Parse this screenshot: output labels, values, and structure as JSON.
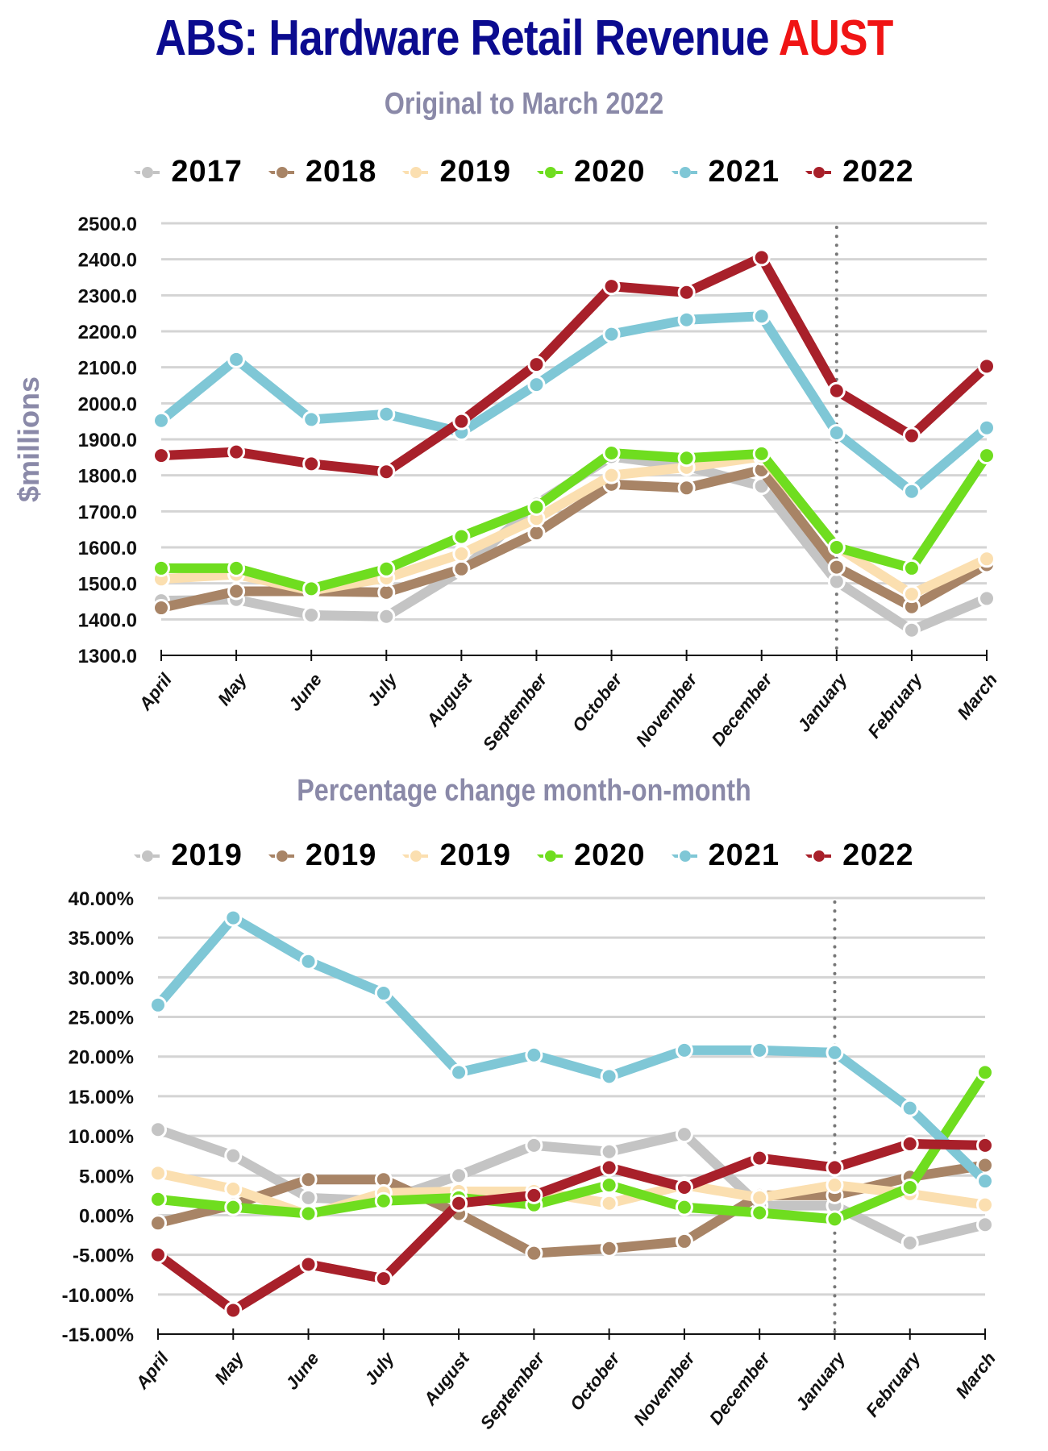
{
  "header": {
    "title_main": "ABS: Hardware Retail Revenue ",
    "title_accent": "AUST"
  },
  "colors": {
    "title": "#0b0b8f",
    "accent": "#f01414",
    "subtitle": "#8a89a8",
    "gray": "#c4c4c4",
    "brown": "#a88466",
    "cream": "#fbdfb0",
    "green": "#6fdd1f",
    "blue": "#7fc7d6",
    "red": "#a8202a"
  },
  "chart_data": [
    {
      "type": "line",
      "title": "Original to March 2022",
      "xlabel": "",
      "ylabel": "$millions",
      "ylim": [
        1300,
        2500
      ],
      "yticks": [
        "1300.0",
        "1400.0",
        "1500.0",
        "1600.0",
        "1700.0",
        "1800.0",
        "1900.0",
        "2000.0",
        "2100.0",
        "2200.0",
        "2300.0",
        "2400.0",
        "2500.0"
      ],
      "grid": true,
      "legend": "top",
      "marker_line_month": "January",
      "categories": [
        "April",
        "May",
        "June",
        "July",
        "August",
        "September",
        "October",
        "November",
        "December",
        "January",
        "February",
        "March"
      ],
      "series": [
        {
          "name": "2017",
          "color": "#c4c4c4",
          "values": [
            1452,
            1455,
            1412,
            1408,
            1535,
            1720,
            1852,
            1825,
            1770,
            1505,
            1370,
            1458
          ]
        },
        {
          "name": "2018",
          "color": "#a88466",
          "values": [
            1432,
            1478,
            1478,
            1475,
            1540,
            1640,
            1775,
            1765,
            1815,
            1545,
            1435,
            1552
          ]
        },
        {
          "name": "2019",
          "color": "#fbdfb0",
          "values": [
            1512,
            1525,
            1480,
            1515,
            1582,
            1680,
            1800,
            1822,
            1852,
            1602,
            1470,
            1568
          ]
        },
        {
          "name": "2020",
          "color": "#6fdd1f",
          "values": [
            1542,
            1542,
            1485,
            1540,
            1630,
            1712,
            1862,
            1848,
            1860,
            1600,
            1542,
            1855
          ]
        },
        {
          "name": "2021",
          "color": "#7fc7d6",
          "values": [
            1952,
            2122,
            1955,
            1970,
            1920,
            2052,
            2192,
            2232,
            2242,
            1918,
            1755,
            1932
          ]
        },
        {
          "name": "2022",
          "color": "#a8202a",
          "values": [
            1855,
            1865,
            1832,
            1810,
            1950,
            2108,
            2325,
            2308,
            2405,
            2035,
            1910,
            2103
          ]
        }
      ]
    },
    {
      "type": "line",
      "title": "Percentage change month-on-month",
      "xlabel": "",
      "ylabel": "",
      "ylim": [
        -15,
        40
      ],
      "yticks": [
        "-15.00%",
        "-10.00%",
        "-5.00%",
        "0.00%",
        "5.00%",
        "10.00%",
        "15.00%",
        "20.00%",
        "25.00%",
        "30.00%",
        "35.00%",
        "40.00%"
      ],
      "grid": true,
      "legend": "top",
      "marker_line_month": "January",
      "categories": [
        "April",
        "May",
        "June",
        "July",
        "August",
        "September",
        "October",
        "November",
        "December",
        "January",
        "February",
        "March"
      ],
      "series": [
        {
          "name": "2019",
          "color": "#c4c4c4",
          "values": [
            10.8,
            7.5,
            2.2,
            1.8,
            5.0,
            8.8,
            8.0,
            10.2,
            1.2,
            1.2,
            -3.5,
            -1.2
          ]
        },
        {
          "name": "2019",
          "color": "#a88466",
          "values": [
            -1.0,
            1.3,
            4.5,
            4.5,
            0.2,
            -4.8,
            -4.2,
            -3.3,
            2.5,
            2.5,
            4.8,
            6.3
          ]
        },
        {
          "name": "2019",
          "color": "#fbdfb0",
          "values": [
            5.3,
            3.3,
            0.0,
            2.8,
            3.0,
            3.0,
            1.5,
            3.8,
            2.2,
            3.8,
            2.7,
            1.3
          ]
        },
        {
          "name": "2020",
          "color": "#6fdd1f",
          "values": [
            2.0,
            1.0,
            0.2,
            1.8,
            2.2,
            1.3,
            3.8,
            1.0,
            0.3,
            -0.5,
            3.5,
            18.0
          ]
        },
        {
          "name": "2021",
          "color": "#7fc7d6",
          "values": [
            26.5,
            37.5,
            32.0,
            28.0,
            18.0,
            20.2,
            17.5,
            20.8,
            20.8,
            20.5,
            13.5,
            4.3
          ]
        },
        {
          "name": "2022",
          "color": "#a8202a",
          "values": [
            -5.0,
            -12.0,
            -6.2,
            -8.0,
            1.5,
            2.5,
            6.0,
            3.5,
            7.2,
            6.0,
            9.0,
            8.8
          ]
        }
      ]
    }
  ]
}
